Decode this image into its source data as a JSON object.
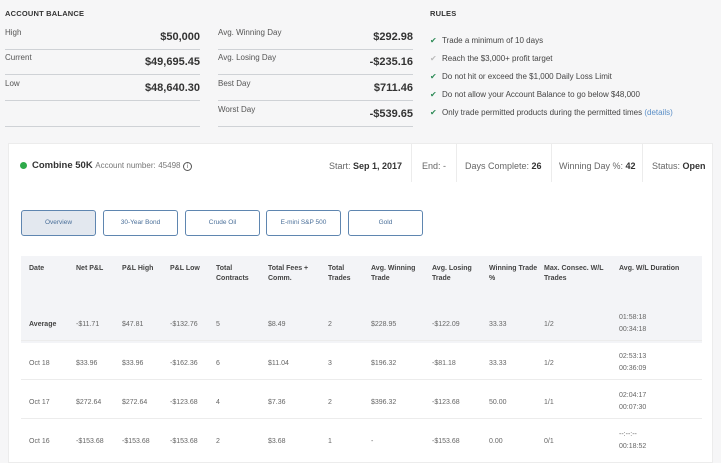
{
  "balance": {
    "title": "ACCOUNT BALANCE",
    "left": [
      {
        "label": "High",
        "value": "$50,000"
      },
      {
        "label": "Current",
        "value": "$49,695.45"
      },
      {
        "label": "Low",
        "value": "$48,640.30"
      }
    ],
    "right": [
      {
        "label": "Avg. Winning Day",
        "value": "$292.98"
      },
      {
        "label": "Avg. Losing Day",
        "value": "-$235.16"
      },
      {
        "label": "Best Day",
        "value": "$711.46"
      },
      {
        "label": "Worst Day",
        "value": "-$539.65"
      }
    ]
  },
  "rules": {
    "title": "RULES",
    "items": [
      {
        "text": "Trade a minimum of 10 days",
        "met": true
      },
      {
        "text": "Reach the $3,000+ profit target",
        "met": false
      },
      {
        "text": "Do not hit or exceed the $1,000 Daily Loss Limit",
        "met": true
      },
      {
        "text": "Do not allow your Account Balance to go below $48,000",
        "met": true
      },
      {
        "text": "Only trade permitted products during the permitted times",
        "met": true,
        "link": "(details)"
      }
    ]
  },
  "account": {
    "name": "Combine 50K",
    "number_label": "Account number:",
    "number": "45498",
    "status_color": "#2eaa4a",
    "start_label": "Start:",
    "start": "Sep 1, 2017",
    "end_label": "End:",
    "end": "-",
    "days_label": "Days Complete:",
    "days": "26",
    "winpct_label": "Winning Day %:",
    "winpct": "42",
    "status_label": "Status:",
    "status": "Open"
  },
  "tabs": [
    "Overview",
    "30-Year Bond",
    "Crude Oil",
    "E-mini S&P 500",
    "Gold"
  ],
  "table": {
    "headers": [
      "Date",
      "Net P&L",
      "P&L High",
      "P&L Low",
      "Total Contracts",
      "Total Fees + Comm.",
      "Total Trades",
      "Avg. Winning Trade",
      "Avg. Losing Trade",
      "Winning Trade %",
      "Max. Consec. W/L Trades",
      "Avg. W/L Duration"
    ],
    "rows": [
      [
        "Average",
        "-$11.71",
        "$47.81",
        "-$132.76",
        "5",
        "$8.49",
        "2",
        "$228.95",
        "-$122.09",
        "33.33",
        "1/2",
        "01:58:18\n00:34:18"
      ],
      [
        "Oct 18",
        "$33.96",
        "$33.96",
        "-$162.36",
        "6",
        "$11.04",
        "3",
        "$196.32",
        "-$81.18",
        "33.33",
        "1/2",
        "02:53:13\n00:36:09"
      ],
      [
        "Oct 17",
        "$272.64",
        "$272.64",
        "-$123.68",
        "4",
        "$7.36",
        "2",
        "$396.32",
        "-$123.68",
        "50.00",
        "1/1",
        "02:04:17\n00:07:30"
      ],
      [
        "Oct 16",
        "-$153.68",
        "-$153.68",
        "-$153.68",
        "2",
        "$3.68",
        "1",
        "-",
        "-$153.68",
        "0.00",
        "0/1",
        "--:--:--\n00:18:52"
      ]
    ]
  }
}
